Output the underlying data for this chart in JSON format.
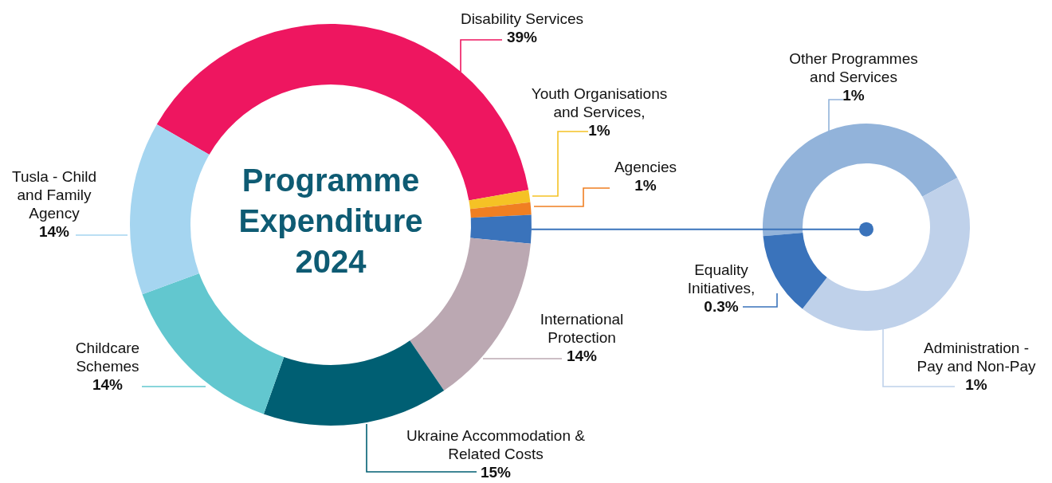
{
  "chart_data": [
    {
      "type": "donut",
      "title": "Programme Expenditure 2024",
      "categories": [
        "Disability Services",
        "Youth Organisations and Services",
        "Agencies",
        null,
        "International Protection",
        "Ukraine Accommodation & Related Costs",
        "Childcare Schemes",
        "Tusla - Child and Family Agency"
      ],
      "values": [
        39,
        1,
        1,
        2.3,
        14,
        15,
        14,
        14
      ],
      "annotations": [
        ","
      ],
      "value_labels": [
        "39%",
        "1%",
        "1%",
        null,
        "14%",
        "15%",
        "14%",
        "14%"
      ],
      "colors": [
        "#ee1660",
        "#f5c225",
        "#f07f22",
        "#3a73bb",
        "#bba8b2",
        "#005f73",
        "#62c7cf",
        "#a5d5f0"
      ]
    },
    {
      "type": "donut",
      "categories": [
        "Other Programmes and Services",
        "Administration - Pay and Non-Pay",
        "Equality Initiatives"
      ],
      "values": [
        1,
        1,
        0.3
      ],
      "annotations": [
        ","
      ],
      "value_labels": [
        "1%",
        "1%",
        "0.3%"
      ],
      "colors": [
        "#92b3da",
        "#bfd1ea",
        "#3a73bb"
      ]
    }
  ]
}
